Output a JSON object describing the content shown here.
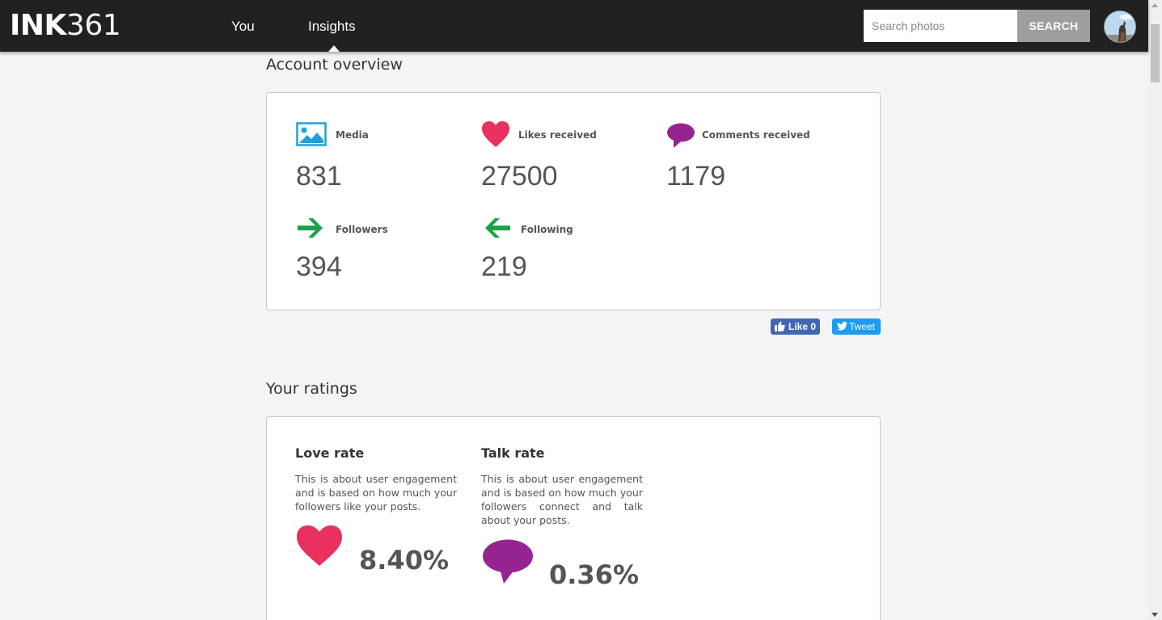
{
  "header": {
    "logo_bold": "INK",
    "logo_light": "361",
    "nav": [
      {
        "label": "You"
      },
      {
        "label": "Insights"
      }
    ],
    "search": {
      "placeholder": "Search photos",
      "value": "",
      "button_label": "SEARCH"
    }
  },
  "account_overview": {
    "title": "Account overview",
    "stats": [
      {
        "label": "Media",
        "value": "831",
        "icon": "image-icon"
      },
      {
        "label": "Likes received",
        "value": "27500",
        "icon": "heart-icon"
      },
      {
        "label": "Comments received",
        "value": "1179",
        "icon": "speech-bubble-icon"
      },
      {
        "label": "Followers",
        "value": "394",
        "icon": "arrow-right-icon"
      },
      {
        "label": "Following",
        "value": "219",
        "icon": "arrow-left-icon"
      }
    ]
  },
  "social": {
    "fb_label": "Like 0",
    "tweet_label": "Tweet"
  },
  "ratings": {
    "title": "Your ratings",
    "items": [
      {
        "title": "Love rate",
        "description": "This is about user engagement and is based on how much your followers like your posts.",
        "value": "8.40%",
        "icon": "heart-icon"
      },
      {
        "title": "Talk rate",
        "description": "This is about user engagement and is based on how much your followers connect and talk about your posts.",
        "value": "0.36%",
        "icon": "speech-bubble-icon"
      }
    ]
  },
  "colors": {
    "topbar": "#212121",
    "heart": "#e8315f",
    "bubble": "#962490",
    "arrow": "#1aa34a",
    "media": "#1da1d6",
    "facebook": "#4267b2",
    "twitter": "#1d9bf0"
  }
}
